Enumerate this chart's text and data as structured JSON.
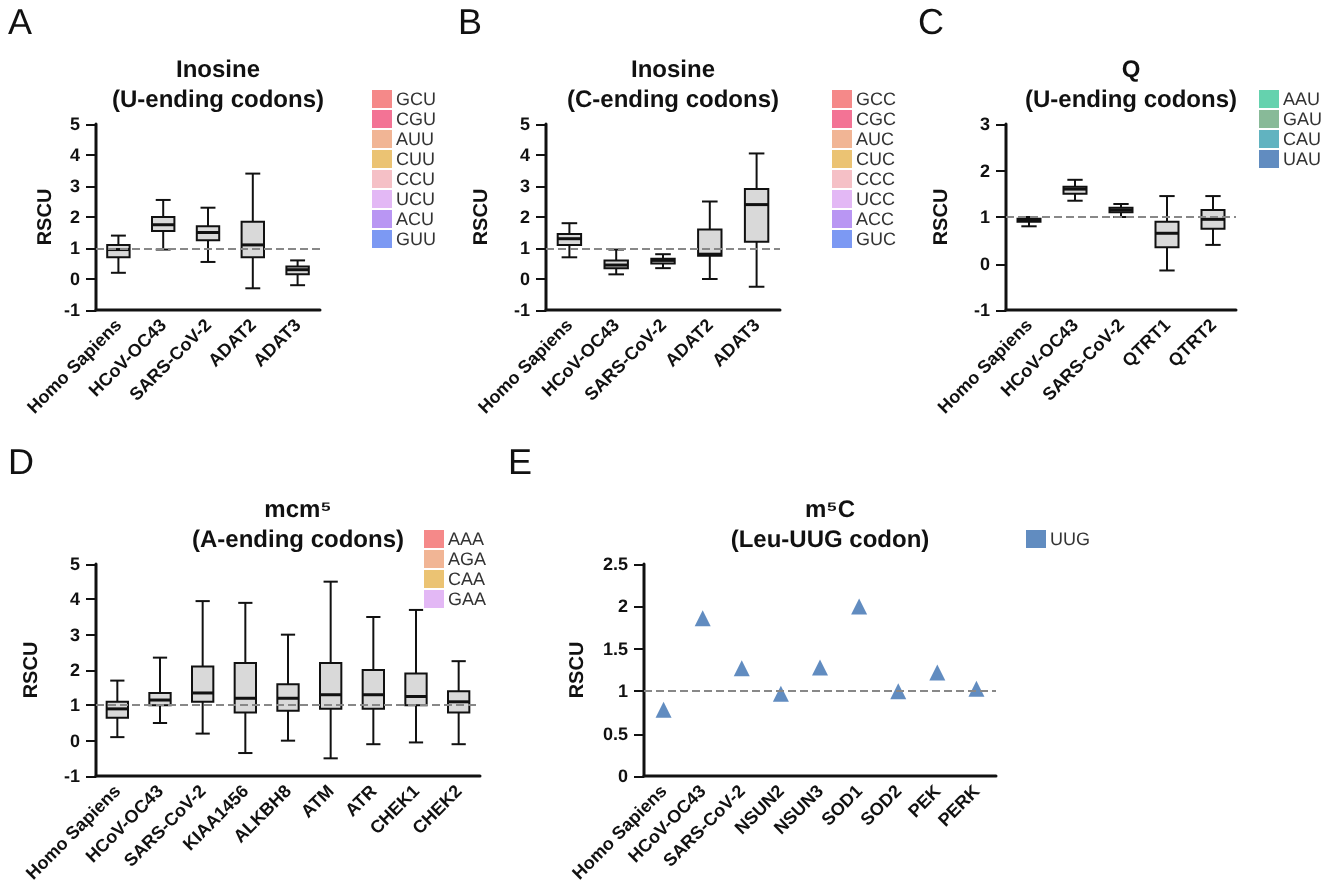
{
  "chart_data": [
    {
      "type": "box",
      "title": "Inosine\n(U-ending codons)",
      "ylabel": "RSCU",
      "annotations": [
        "A"
      ],
      "categories": [
        "Homo Sapiens",
        "HCoV-OC43",
        "SARS-CoV-2",
        "ADAT2",
        "ADAT3"
      ],
      "ylim": [
        -1,
        5
      ],
      "yticks": [
        -1,
        0,
        1,
        2,
        3,
        4,
        5
      ],
      "legend": "top right",
      "ref_lines": [
        {
          "axis": "y",
          "value": 1,
          "color": "#888888",
          "line_style": "dashed"
        }
      ],
      "series": [
        {
          "color": "#d9d9d9",
          "boxes": [
            {
              "low": 0.2,
              "q1": 0.7,
              "median": 0.95,
              "q3": 1.1,
              "high": 1.4
            },
            {
              "low": 0.95,
              "q1": 1.55,
              "median": 1.75,
              "q3": 2.0,
              "high": 2.55
            },
            {
              "low": 0.55,
              "q1": 1.25,
              "median": 1.5,
              "q3": 1.7,
              "high": 2.3
            },
            {
              "low": -0.3,
              "q1": 0.7,
              "median": 1.1,
              "q3": 1.85,
              "high": 3.4
            },
            {
              "low": -0.2,
              "q1": 0.15,
              "median": 0.3,
              "q3": 0.4,
              "high": 0.6
            }
          ]
        },
        {
          "type": "scatter",
          "name": "GCU",
          "color": "#f26b6b",
          "values": [
            null,
            null,
            null,
            null,
            null
          ]
        },
        {
          "type": "scatter",
          "name": "CGU",
          "color": "#f0507a",
          "values": [
            null,
            null,
            null,
            null,
            null
          ]
        },
        {
          "type": "scatter",
          "name": "AUU",
          "color": "#eea37a",
          "values": [
            null,
            null,
            null,
            null,
            null
          ]
        },
        {
          "type": "scatter",
          "name": "CUU",
          "color": "#e6b450",
          "values": [
            null,
            null,
            null,
            null,
            null
          ]
        },
        {
          "type": "scatter",
          "name": "CCU",
          "color": "#f2b0b8",
          "values": [
            null,
            null,
            null,
            null,
            null
          ]
        },
        {
          "type": "scatter",
          "name": "UCU",
          "color": "#dca6f2",
          "values": [
            null,
            null,
            null,
            null,
            null
          ]
        },
        {
          "type": "scatter",
          "name": "ACU",
          "color": "#a77cf0",
          "values": [
            null,
            null,
            null,
            null,
            null
          ]
        },
        {
          "type": "scatter",
          "name": "GUU",
          "color": "#5b7ff0",
          "values": [
            null,
            null,
            null,
            null,
            null
          ]
        }
      ]
    },
    {
      "type": "box",
      "title": "Inosine\n(C-ending codons)",
      "ylabel": "RSCU",
      "annotations": [
        "B"
      ],
      "categories": [
        "Homo Sapiens",
        "HCoV-OC43",
        "SARS-CoV-2",
        "ADAT2",
        "ADAT3"
      ],
      "ylim": [
        -1,
        5
      ],
      "yticks": [
        -1,
        0,
        1,
        2,
        3,
        4,
        5
      ],
      "legend": "top right",
      "ref_lines": [
        {
          "axis": "y",
          "value": 1,
          "color": "#888888",
          "line_style": "dashed"
        }
      ],
      "series": [
        {
          "color": "#d9d9d9",
          "boxes": [
            {
              "low": 0.7,
              "q1": 1.1,
              "median": 1.3,
              "q3": 1.45,
              "high": 1.8
            },
            {
              "low": 0.15,
              "q1": 0.35,
              "median": 0.45,
              "q3": 0.6,
              "high": 0.95
            },
            {
              "low": 0.35,
              "q1": 0.5,
              "median": 0.6,
              "q3": 0.65,
              "high": 0.8
            },
            {
              "low": 0,
              "q1": 0.75,
              "median": 0.8,
              "q3": 1.6,
              "high": 2.5
            },
            {
              "low": -0.25,
              "q1": 1.2,
              "median": 2.4,
              "q3": 2.9,
              "high": 4.05
            }
          ]
        },
        {
          "type": "scatter",
          "name": "GCC",
          "color": "#f26b6b",
          "values": [
            null,
            null,
            null,
            null,
            null
          ]
        },
        {
          "type": "scatter",
          "name": "CGC",
          "color": "#f0507a",
          "values": [
            null,
            null,
            null,
            null,
            null
          ]
        },
        {
          "type": "scatter",
          "name": "AUC",
          "color": "#eea37a",
          "values": [
            null,
            null,
            null,
            null,
            null
          ]
        },
        {
          "type": "scatter",
          "name": "CUC",
          "color": "#e6b450",
          "values": [
            null,
            null,
            null,
            null,
            null
          ]
        },
        {
          "type": "scatter",
          "name": "CCC",
          "color": "#f2b0b8",
          "values": [
            null,
            null,
            null,
            null,
            null
          ]
        },
        {
          "type": "scatter",
          "name": "UCC",
          "color": "#dca6f2",
          "values": [
            null,
            null,
            null,
            null,
            null
          ]
        },
        {
          "type": "scatter",
          "name": "ACC",
          "color": "#a77cf0",
          "values": [
            null,
            null,
            null,
            null,
            null
          ]
        },
        {
          "type": "scatter",
          "name": "GUC",
          "color": "#5b7ff0",
          "values": [
            null,
            null,
            null,
            null,
            null
          ]
        }
      ]
    },
    {
      "type": "box",
      "title": "Q\n(U-ending codons)",
      "ylabel": "RSCU",
      "annotations": [
        "C"
      ],
      "categories": [
        "Homo Sapiens",
        "HCoV-OC43",
        "SARS-CoV-2",
        "QTRT1",
        "QTRT2"
      ],
      "ylim": [
        -1,
        3
      ],
      "yticks": [
        -1,
        0,
        1,
        2,
        3
      ],
      "legend": "top right",
      "ref_lines": [
        {
          "axis": "y",
          "value": 1,
          "color": "#888888",
          "line_style": "dashed"
        }
      ],
      "series": [
        {
          "color": "#d9d9d9",
          "boxes": [
            {
              "low": 0.8,
              "q1": 0.9,
              "median": 0.93,
              "q3": 0.96,
              "high": 1.0
            },
            {
              "low": 1.35,
              "q1": 1.5,
              "median": 1.6,
              "q3": 1.65,
              "high": 1.8
            },
            {
              "low": 1.0,
              "q1": 1.1,
              "median": 1.15,
              "q3": 1.2,
              "high": 1.28
            },
            {
              "low": -0.15,
              "q1": 0.35,
              "median": 0.65,
              "q3": 0.9,
              "high": 1.45
            },
            {
              "low": 0.4,
              "q1": 0.75,
              "median": 0.95,
              "q3": 1.15,
              "high": 1.45
            }
          ]
        },
        {
          "type": "scatter",
          "name": "AAU",
          "color": "#3fc79a",
          "values": [
            null,
            null,
            null,
            null,
            null
          ]
        },
        {
          "type": "scatter",
          "name": "GAU",
          "color": "#6aa97e",
          "values": [
            null,
            null,
            null,
            null,
            null
          ]
        },
        {
          "type": "scatter",
          "name": "CAU",
          "color": "#3aa0b0",
          "values": [
            null,
            null,
            null,
            null,
            null
          ]
        },
        {
          "type": "scatter",
          "name": "UAU",
          "color": "#3a6fb0",
          "values": [
            null,
            null,
            null,
            null,
            null
          ]
        }
      ]
    },
    {
      "type": "box",
      "title": "mcm⁵\n(A-ending codons)",
      "ylabel": "RSCU",
      "annotations": [
        "D"
      ],
      "categories": [
        "Homo Sapiens",
        "HCoV-OC43",
        "SARS-CoV-2",
        "KIAA1456",
        "ALKBH8",
        "ATM",
        "ATR",
        "CHEK1",
        "CHEK2"
      ],
      "ylim": [
        -1,
        5
      ],
      "yticks": [
        -1,
        0,
        1,
        2,
        3,
        4,
        5
      ],
      "legend": "top right",
      "ref_lines": [
        {
          "axis": "y",
          "value": 1,
          "color": "#888888",
          "line_style": "dashed"
        }
      ],
      "series": [
        {
          "color": "#d9d9d9",
          "boxes": [
            {
              "low": 0.1,
              "q1": 0.65,
              "median": 0.9,
              "q3": 1.1,
              "high": 1.7
            },
            {
              "low": 0.5,
              "q1": 1.0,
              "median": 1.15,
              "q3": 1.35,
              "high": 2.35
            },
            {
              "low": 0.2,
              "q1": 1.1,
              "median": 1.35,
              "q3": 2.1,
              "high": 3.95
            },
            {
              "low": -0.35,
              "q1": 0.8,
              "median": 1.2,
              "q3": 2.2,
              "high": 3.9
            },
            {
              "low": 0,
              "q1": 0.85,
              "median": 1.2,
              "q3": 1.6,
              "high": 3.0
            },
            {
              "low": -0.5,
              "q1": 0.9,
              "median": 1.3,
              "q3": 2.2,
              "high": 4.5
            },
            {
              "low": -0.1,
              "q1": 0.9,
              "median": 1.3,
              "q3": 2.0,
              "high": 3.5
            },
            {
              "low": -0.05,
              "q1": 1.0,
              "median": 1.25,
              "q3": 1.9,
              "high": 3.7
            },
            {
              "low": -0.1,
              "q1": 0.8,
              "median": 1.1,
              "q3": 1.4,
              "high": 2.25
            }
          ]
        },
        {
          "type": "scatter",
          "name": "AAA",
          "color": "#f26b6b",
          "values": [
            null,
            null,
            null,
            null,
            null,
            null,
            null,
            null,
            null
          ]
        },
        {
          "type": "scatter",
          "name": "AGA",
          "color": "#eea37a",
          "values": [
            null,
            null,
            null,
            null,
            null,
            null,
            null,
            null,
            null
          ]
        },
        {
          "type": "scatter",
          "name": "CAA",
          "color": "#e6b450",
          "values": [
            null,
            null,
            null,
            null,
            null,
            null,
            null,
            null,
            null
          ]
        },
        {
          "type": "scatter",
          "name": "GAA",
          "color": "#dca6f2",
          "values": [
            null,
            null,
            null,
            null,
            null,
            null,
            null,
            null,
            null
          ]
        }
      ]
    },
    {
      "type": "scatter",
      "title": "m⁵C\n(Leu-UUG codon)",
      "ylabel": "RSCU",
      "annotations": [
        "E"
      ],
      "categories": [
        "Homo Sapiens",
        "HCoV-OC43",
        "SARS-CoV-2",
        "NSUN2",
        "NSUN3",
        "SOD1",
        "SOD2",
        "PEK",
        "PERK"
      ],
      "ylim": [
        0,
        2.5
      ],
      "yticks": [
        0,
        0.5,
        1,
        1.5,
        2,
        2.5
      ],
      "legend": "top right",
      "marker": "triangle",
      "ref_lines": [
        {
          "axis": "y",
          "value": 1,
          "color": "#888888",
          "line_style": "dashed"
        }
      ],
      "series": [
        {
          "name": "UUG",
          "color": "#3a6fb0",
          "values": [
            0.78,
            1.86,
            1.27,
            0.97,
            1.28,
            2.0,
            1.0,
            1.22,
            1.03
          ]
        }
      ]
    }
  ]
}
